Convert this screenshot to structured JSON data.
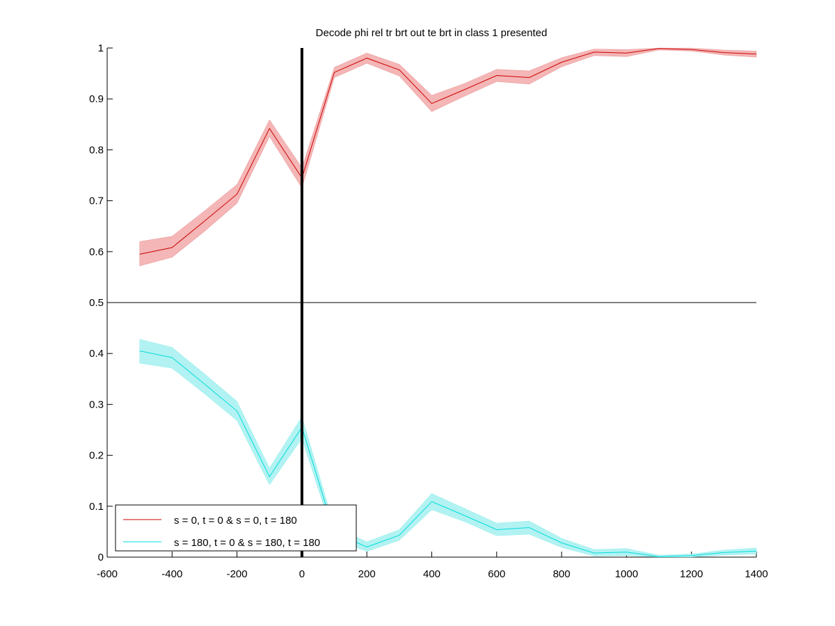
{
  "chart_data": {
    "type": "line",
    "title": "Decode phi rel tr brt out te brt in  class 1 presented",
    "xlabel": "",
    "ylabel": "",
    "xlim": [
      -600,
      1400
    ],
    "ylim": [
      0,
      1
    ],
    "xticks": [
      -600,
      -400,
      -200,
      0,
      200,
      400,
      600,
      800,
      1000,
      1200,
      1400
    ],
    "yticks": [
      0,
      0.1,
      0.2,
      0.3,
      0.4,
      0.5,
      0.6,
      0.7,
      0.8,
      0.9,
      1
    ],
    "grid": false,
    "reference_lines": {
      "horizontal_y": 0.5,
      "vertical_x": 0
    },
    "legend_position": "bottom-left",
    "x": [
      -500,
      -400,
      -300,
      -200,
      -100,
      0,
      100,
      200,
      300,
      400,
      500,
      600,
      700,
      800,
      900,
      1000,
      1100,
      1200,
      1300,
      1400
    ],
    "series": [
      {
        "name": "s = 0, t = 0 & s = 0, t = 180",
        "color": "#cc0000",
        "band_color": "#f4b6b6",
        "values": [
          0.595,
          0.608,
          0.66,
          0.713,
          0.842,
          0.745,
          0.952,
          0.98,
          0.957,
          0.891,
          0.918,
          0.946,
          0.942,
          0.972,
          0.992,
          0.99,
          0.999,
          0.997,
          0.991,
          0.988
        ],
        "lower": [
          0.572,
          0.589,
          0.64,
          0.695,
          0.826,
          0.725,
          0.942,
          0.97,
          0.945,
          0.875,
          0.905,
          0.934,
          0.929,
          0.963,
          0.985,
          0.983,
          0.996,
          0.994,
          0.986,
          0.982
        ],
        "upper": [
          0.62,
          0.63,
          0.68,
          0.732,
          0.859,
          0.765,
          0.962,
          0.99,
          0.968,
          0.907,
          0.93,
          0.958,
          0.955,
          0.981,
          0.998,
          0.997,
          1.0,
          1.0,
          0.996,
          0.994
        ]
      },
      {
        "name": "s = 180, t = 0 & s = 180, t = 180",
        "color": "#00dddd",
        "band_color": "#b3f2f2",
        "values": [
          0.405,
          0.392,
          0.34,
          0.287,
          0.158,
          0.255,
          0.048,
          0.02,
          0.043,
          0.109,
          0.082,
          0.054,
          0.058,
          0.028,
          0.008,
          0.01,
          0.001,
          0.003,
          0.009,
          0.012
        ],
        "lower": [
          0.381,
          0.371,
          0.321,
          0.268,
          0.142,
          0.233,
          0.036,
          0.011,
          0.033,
          0.093,
          0.07,
          0.042,
          0.045,
          0.019,
          0.002,
          0.003,
          0.0,
          0.0,
          0.004,
          0.006
        ],
        "upper": [
          0.428,
          0.412,
          0.36,
          0.306,
          0.175,
          0.276,
          0.059,
          0.03,
          0.054,
          0.125,
          0.096,
          0.067,
          0.071,
          0.037,
          0.015,
          0.017,
          0.004,
          0.006,
          0.014,
          0.018
        ]
      }
    ]
  }
}
